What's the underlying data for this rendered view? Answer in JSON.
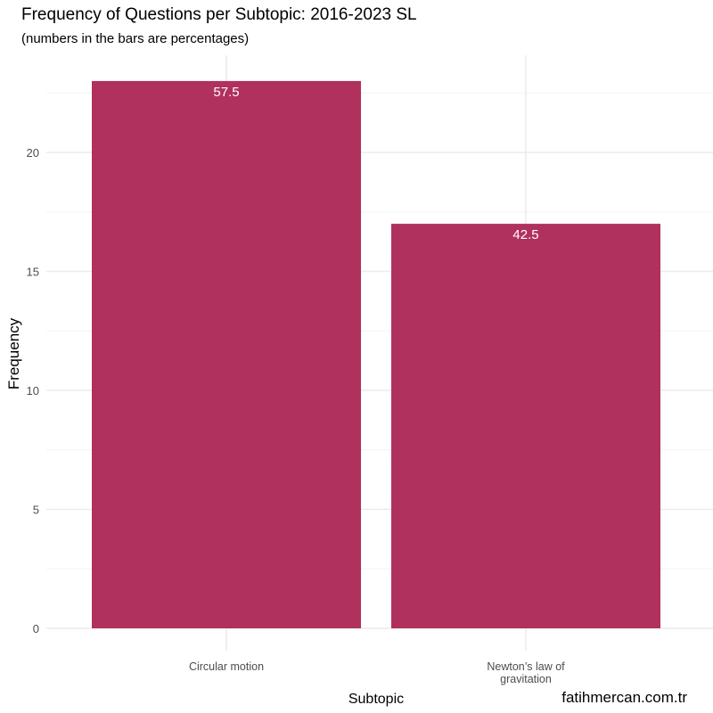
{
  "chart_data": {
    "type": "bar",
    "title": "Frequency of Questions per Subtopic: 2016-2023 SL",
    "subtitle": "(numbers in the bars are percentages)",
    "xlabel": "Subtopic",
    "ylabel": "Frequency",
    "categories": [
      "Circular motion",
      "Newton’s law of gravitation"
    ],
    "category_label_lines": [
      [
        "Circular motion"
      ],
      [
        "Newton’s law of",
        "gravitation"
      ]
    ],
    "values": [
      23,
      17
    ],
    "bar_labels": [
      "57.5",
      "42.5"
    ],
    "ylim": [
      0,
      23
    ],
    "yticks": [
      0,
      5,
      10,
      15,
      20
    ],
    "grid": true,
    "legend": "none",
    "colors": {
      "bar": "#B0305E",
      "bar_label": "#FFFFFF",
      "grid_major": "#EBEBEB",
      "grid_minor": "#F4F4F4",
      "tick_label": "#4D4D4D",
      "text": "#000000"
    }
  },
  "watermark": "fatihmercan.com.tr"
}
